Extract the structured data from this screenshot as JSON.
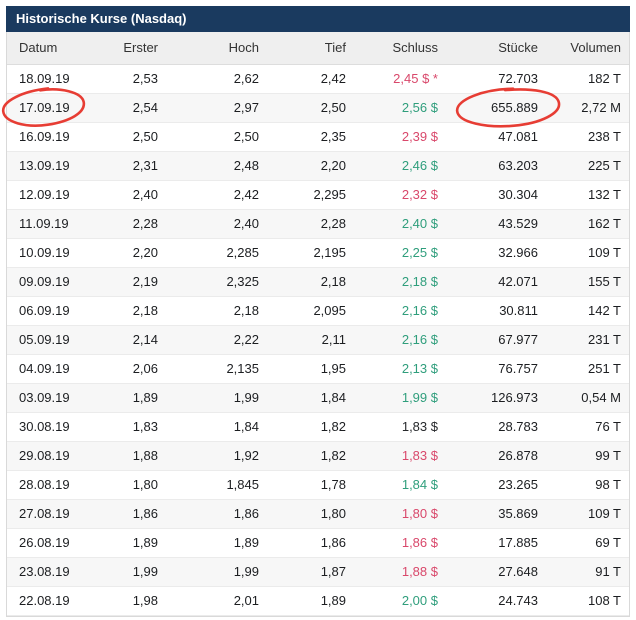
{
  "panel": {
    "title": "Historische Kurse (Nasdaq)"
  },
  "colors": {
    "title_bar": "#1a3a5f",
    "up": "#2f9e7c",
    "down": "#d9486b",
    "neutral": "#26282b",
    "annotation": "#e63329"
  },
  "table": {
    "columns": [
      {
        "key": "datum",
        "label": "Datum"
      },
      {
        "key": "erster",
        "label": "Erster"
      },
      {
        "key": "hoch",
        "label": "Hoch"
      },
      {
        "key": "tief",
        "label": "Tief"
      },
      {
        "key": "schluss",
        "label": "Schluss"
      },
      {
        "key": "stuecke",
        "label": "Stücke"
      },
      {
        "key": "volumen",
        "label": "Volumen"
      }
    ],
    "rows": [
      {
        "datum": "18.09.19",
        "erster": "2,53",
        "hoch": "2,62",
        "tief": "2,42",
        "schluss": "2,45 $ *",
        "trend": "down",
        "stuecke": "72.703",
        "volumen": "182 T"
      },
      {
        "datum": "17.09.19",
        "erster": "2,54",
        "hoch": "2,97",
        "tief": "2,50",
        "schluss": "2,56 $",
        "trend": "up",
        "stuecke": "655.889",
        "volumen": "2,72 M"
      },
      {
        "datum": "16.09.19",
        "erster": "2,50",
        "hoch": "2,50",
        "tief": "2,35",
        "schluss": "2,39 $",
        "trend": "down",
        "stuecke": "47.081",
        "volumen": "238 T"
      },
      {
        "datum": "13.09.19",
        "erster": "2,31",
        "hoch": "2,48",
        "tief": "2,20",
        "schluss": "2,46 $",
        "trend": "up",
        "stuecke": "63.203",
        "volumen": "225 T"
      },
      {
        "datum": "12.09.19",
        "erster": "2,40",
        "hoch": "2,42",
        "tief": "2,295",
        "schluss": "2,32 $",
        "trend": "down",
        "stuecke": "30.304",
        "volumen": "132 T"
      },
      {
        "datum": "11.09.19",
        "erster": "2,28",
        "hoch": "2,40",
        "tief": "2,28",
        "schluss": "2,40 $",
        "trend": "up",
        "stuecke": "43.529",
        "volumen": "162 T"
      },
      {
        "datum": "10.09.19",
        "erster": "2,20",
        "hoch": "2,285",
        "tief": "2,195",
        "schluss": "2,25 $",
        "trend": "up",
        "stuecke": "32.966",
        "volumen": "109 T"
      },
      {
        "datum": "09.09.19",
        "erster": "2,19",
        "hoch": "2,325",
        "tief": "2,18",
        "schluss": "2,18 $",
        "trend": "up",
        "stuecke": "42.071",
        "volumen": "155 T"
      },
      {
        "datum": "06.09.19",
        "erster": "2,18",
        "hoch": "2,18",
        "tief": "2,095",
        "schluss": "2,16 $",
        "trend": "up",
        "stuecke": "30.811",
        "volumen": "142 T"
      },
      {
        "datum": "05.09.19",
        "erster": "2,14",
        "hoch": "2,22",
        "tief": "2,11",
        "schluss": "2,16 $",
        "trend": "up",
        "stuecke": "67.977",
        "volumen": "231 T"
      },
      {
        "datum": "04.09.19",
        "erster": "2,06",
        "hoch": "2,135",
        "tief": "1,95",
        "schluss": "2,13 $",
        "trend": "up",
        "stuecke": "76.757",
        "volumen": "251 T"
      },
      {
        "datum": "03.09.19",
        "erster": "1,89",
        "hoch": "1,99",
        "tief": "1,84",
        "schluss": "1,99 $",
        "trend": "up",
        "stuecke": "126.973",
        "volumen": "0,54 M"
      },
      {
        "datum": "30.08.19",
        "erster": "1,83",
        "hoch": "1,84",
        "tief": "1,82",
        "schluss": "1,83 $",
        "trend": "neutral",
        "stuecke": "28.783",
        "volumen": "76 T"
      },
      {
        "datum": "29.08.19",
        "erster": "1,88",
        "hoch": "1,92",
        "tief": "1,82",
        "schluss": "1,83 $",
        "trend": "down",
        "stuecke": "26.878",
        "volumen": "99 T"
      },
      {
        "datum": "28.08.19",
        "erster": "1,80",
        "hoch": "1,845",
        "tief": "1,78",
        "schluss": "1,84 $",
        "trend": "up",
        "stuecke": "23.265",
        "volumen": "98 T"
      },
      {
        "datum": "27.08.19",
        "erster": "1,86",
        "hoch": "1,86",
        "tief": "1,80",
        "schluss": "1,80 $",
        "trend": "down",
        "stuecke": "35.869",
        "volumen": "109 T"
      },
      {
        "datum": "26.08.19",
        "erster": "1,89",
        "hoch": "1,89",
        "tief": "1,86",
        "schluss": "1,86 $",
        "trend": "down",
        "stuecke": "17.885",
        "volumen": "69 T"
      },
      {
        "datum": "23.08.19",
        "erster": "1,99",
        "hoch": "1,99",
        "tief": "1,87",
        "schluss": "1,88 $",
        "trend": "down",
        "stuecke": "27.648",
        "volumen": "91 T"
      },
      {
        "datum": "22.08.19",
        "erster": "1,98",
        "hoch": "2,01",
        "tief": "1,89",
        "schluss": "2,00 $",
        "trend": "up",
        "stuecke": "24.743",
        "volumen": "108 T"
      }
    ]
  },
  "annotations": [
    {
      "name": "hand-drawn-circle-date",
      "target": "17.09.19"
    },
    {
      "name": "hand-drawn-circle-stuecke",
      "target": "655.889"
    }
  ]
}
